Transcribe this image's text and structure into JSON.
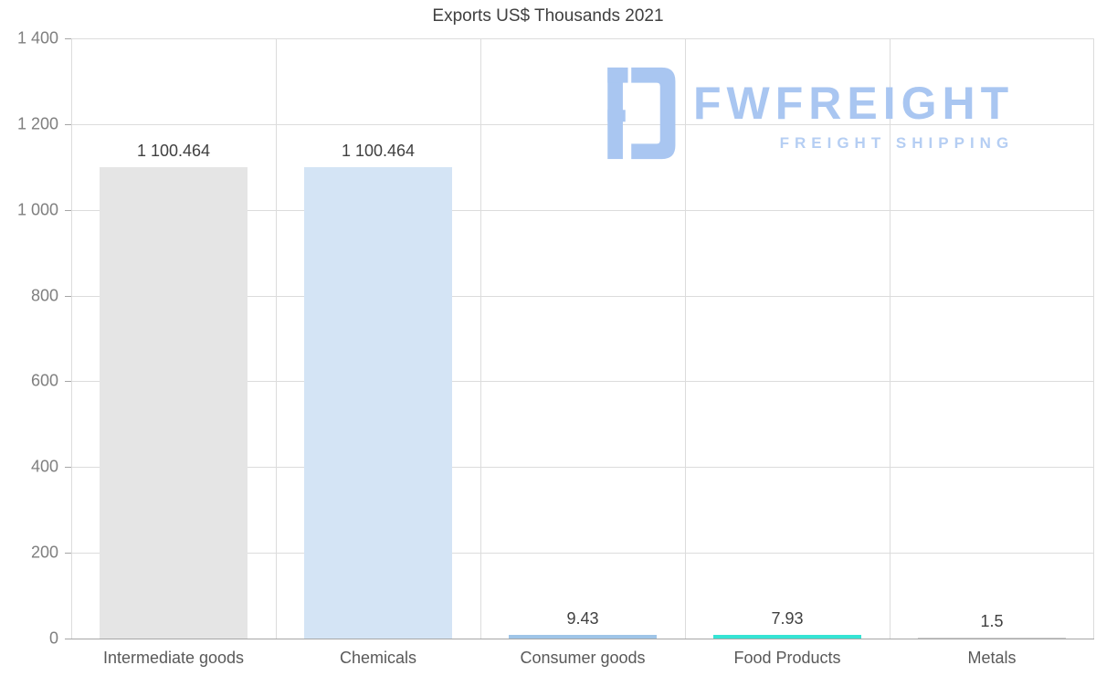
{
  "chart_data": {
    "type": "bar",
    "title": "Exports US$ Thousands 2021",
    "categories": [
      "Intermediate goods",
      "Chemicals",
      "Consumer goods",
      "Food Products",
      "Metals"
    ],
    "values": [
      1100.464,
      1100.464,
      9.43,
      7.93,
      1.5
    ],
    "value_labels": [
      "1 100.464",
      "1 100.464",
      "9.43",
      "7.93",
      "1.5"
    ],
    "bar_colors": [
      "#e5e5e5",
      "#d4e4f5",
      "#9fc5e8",
      "#35e4d4",
      "#cccccc"
    ],
    "xlabel": "",
    "ylabel": "",
    "ylim": [
      0,
      1400
    ],
    "ytick_interval": 200,
    "ytick_labels": [
      "0",
      "200",
      "400",
      "600",
      "800",
      "1 000",
      "1 200",
      "1 400"
    ],
    "grid": true,
    "legend": "none"
  },
  "watermark": {
    "brand": "FWFREIGHT",
    "tagline": "FREIGHT SHIPPING",
    "color": "#a9c6f1"
  },
  "colors": {
    "background": "#ffffff",
    "grid": "#dcdcdc",
    "axis": "#a6a6a6",
    "tick_label": "#7f7f7f",
    "value_label": "#404040",
    "category_label": "#595959",
    "title": "#404040"
  }
}
